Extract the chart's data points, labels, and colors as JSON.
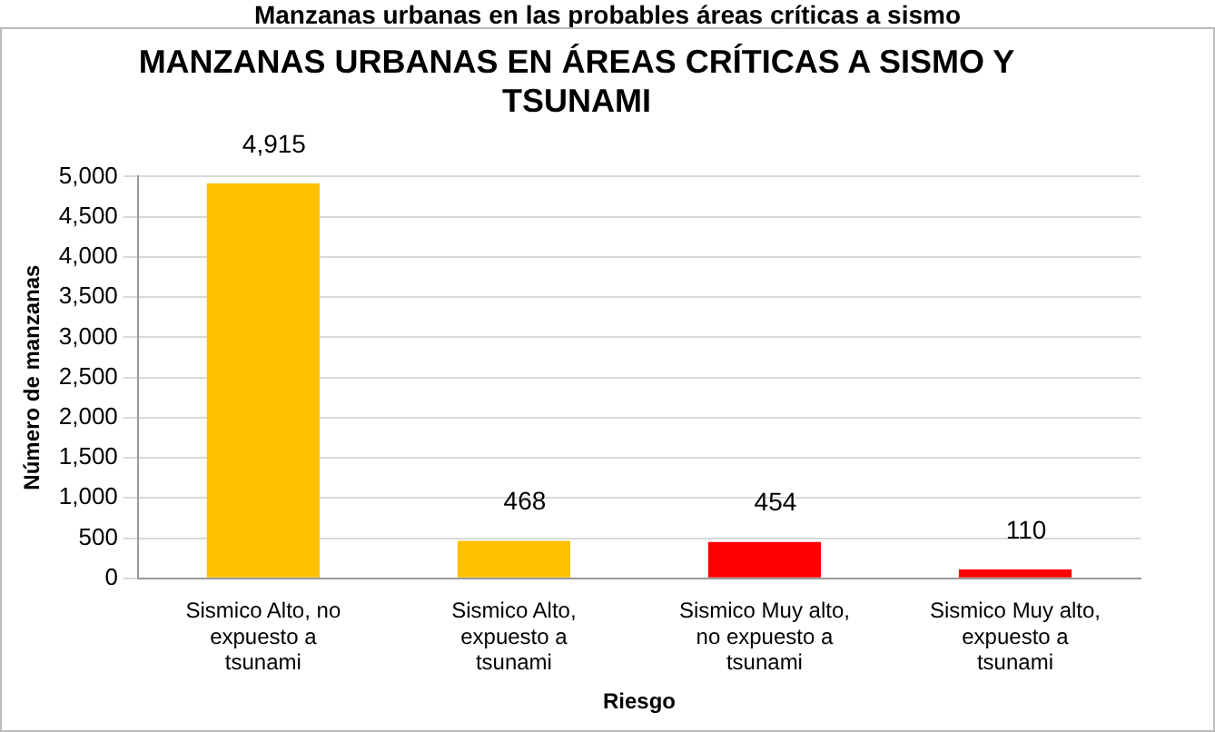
{
  "chart_data": {
    "type": "bar",
    "title": "MANZANAS URBANAS EN ÁREAS CRÍTICAS A SISMO Y TSUNAMI",
    "xlabel": "Riesgo",
    "ylabel": "Número de manzanas",
    "annotations": [
      "Manzanas urbanas en las probables áreas críticas a sismo"
    ],
    "categories": [
      "Sismico Alto, no expuesto a tsunami",
      "Sismico Alto, expuesto a tsunami",
      "Sismico Muy alto, no expuesto a tsunami",
      "Sismico Muy alto, expuesto a tsunami"
    ],
    "values": [
      4915,
      468,
      454,
      110
    ],
    "colors": [
      "#ffc000",
      "#ffc000",
      "#ff0000",
      "#ff0000"
    ],
    "value_labels": [
      "4,915",
      "468",
      "454",
      "110"
    ],
    "ylim": [
      0,
      5000
    ],
    "yticks": [
      0,
      500,
      {
        "value": 1000,
        "label": "1,000"
      },
      {
        "value": 1500,
        "label": "1,500"
      },
      {
        "value": 2000,
        "label": "2,000"
      },
      {
        "value": 2500,
        "label": "2,500"
      },
      {
        "value": 3000,
        "label": "3,000"
      },
      {
        "value": 3500,
        "label": "3,500"
      },
      {
        "value": 4000,
        "label": "4,000"
      },
      {
        "value": 4500,
        "label": "4,500"
      },
      {
        "value": 5000,
        "label": "5,000"
      }
    ],
    "grid": "y",
    "legend": false
  }
}
